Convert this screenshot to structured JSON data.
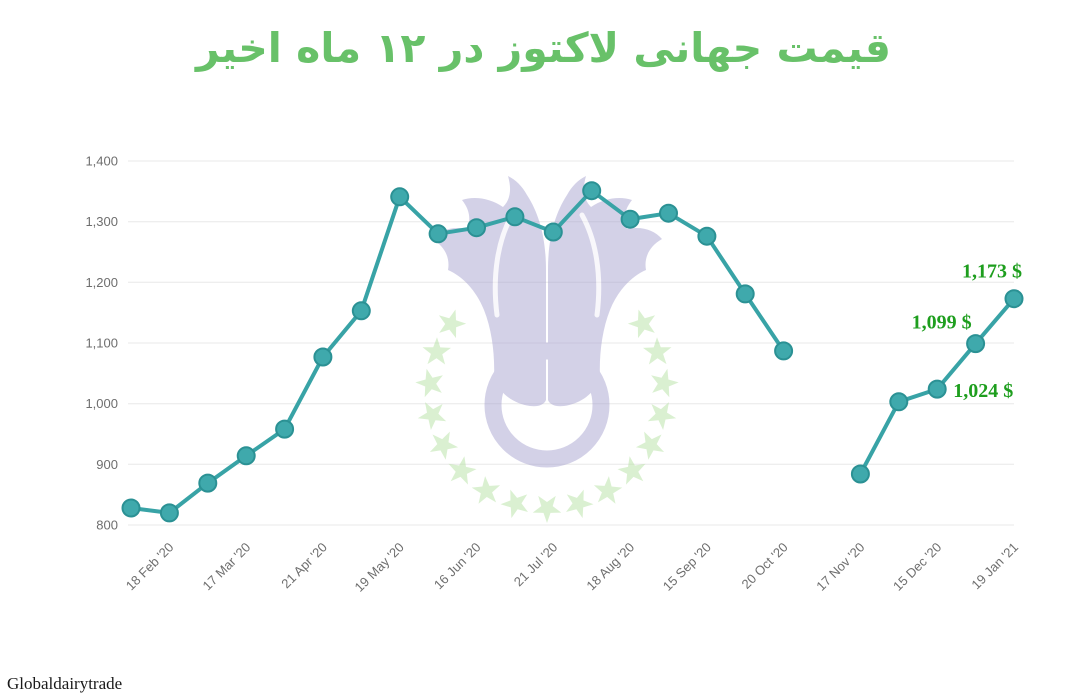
{
  "page": {
    "background": "#ffffff"
  },
  "title": {
    "text": "قیمت جهانی لاکتوز در ۱۲ ماه اخیر",
    "color": "#68c169"
  },
  "source_label": "Globaldairytrade",
  "watermark": {
    "name": "tulip-and-stars-logo",
    "tulip_color": "#a9a4d1",
    "star_color": "#b7e3a4"
  },
  "chart_data": {
    "type": "line",
    "title": "قیمت جهانی لاکتوز در ۱۲ ماه اخیر",
    "x_tick_labels": [
      "18 Feb '20",
      "17 Mar '20",
      "21 Apr '20",
      "19 May '20",
      "16 Jun '20",
      "21 Jul '20",
      "18 Aug '20",
      "15 Sep '20",
      "20 Oct '20",
      "17 Nov '20",
      "15 Dec '20",
      "19 Jan '21"
    ],
    "x_tick_point_indices": [
      1,
      3,
      5,
      7,
      9,
      11,
      13,
      15,
      17,
      19,
      21,
      23
    ],
    "y_ticks": [
      800,
      900,
      1000,
      1100,
      1200,
      1300,
      1400
    ],
    "y_tick_labels": [
      "800",
      "900",
      "1,000",
      "1,100",
      "1,200",
      "1,300",
      "1,400"
    ],
    "ylim": [
      800,
      1400
    ],
    "grid": "horizontal-only",
    "legend": "none",
    "values": [
      828,
      820,
      869,
      914,
      958,
      1077,
      1153,
      1341,
      1280,
      1290,
      1308,
      1283,
      1351,
      1304,
      1314,
      1276,
      1181,
      1087,
      null,
      884,
      1003,
      1024,
      1099,
      1173
    ],
    "point_labels": [
      {
        "point_index": 21,
        "text": "1,024 $"
      },
      {
        "point_index": 22,
        "text": "1,099 $"
      },
      {
        "point_index": 23,
        "text": "1,173 $"
      }
    ],
    "series_color": "#38a3a6",
    "marker_fill": "#3fa9ac",
    "marker_stroke": "#2b9194",
    "grid_color": "#e8e8e8",
    "axis_text_color": "#6e6e6e",
    "point_label_color": "#1e9e1e"
  }
}
